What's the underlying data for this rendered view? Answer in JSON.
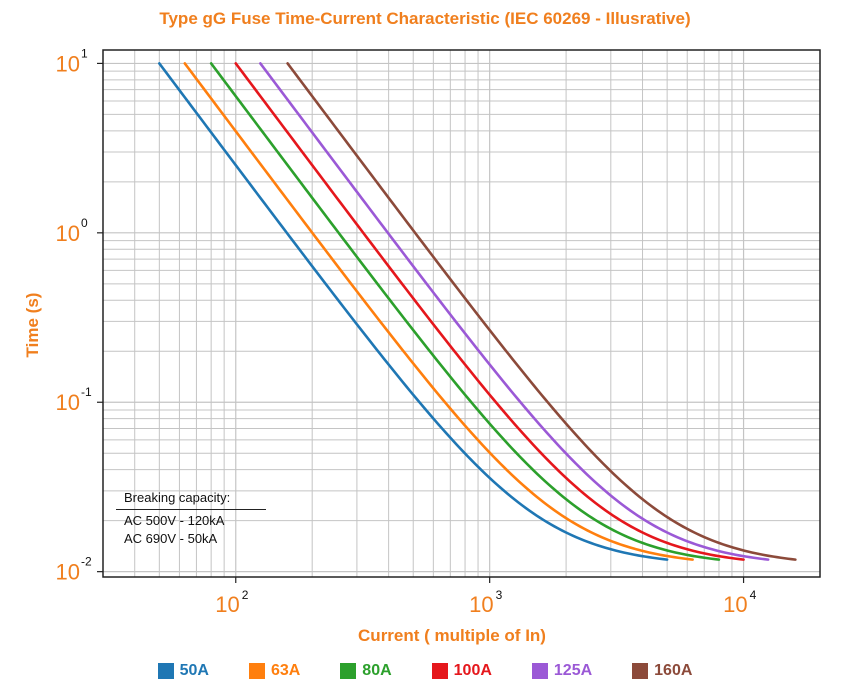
{
  "title": "Type gG Fuse Time-Current Characteristic (IEC 60269 - Illusrative)",
  "note": {
    "heading": "Breaking capacity:",
    "lines": [
      "AC 500V - 120kA",
      "AC 690V - 50kA"
    ]
  },
  "chart_data": {
    "type": "line",
    "title": "Type gG Fuse Time-Current Characteristic (IEC 60269 - Illusrative)",
    "xlabel": "Current ( multiple of In)",
    "ylabel": "Time (s)",
    "xscale": "log",
    "yscale": "log",
    "xlim": [
      30,
      20000
    ],
    "ylim": [
      0.0093,
      12
    ],
    "x_ticks": [
      {
        "base": "10",
        "exp": "2",
        "value": 100
      },
      {
        "base": "10",
        "exp": "3",
        "value": 1000
      },
      {
        "base": "10",
        "exp": "4",
        "value": 10000
      }
    ],
    "y_ticks": [
      {
        "base": "10",
        "exp": "1",
        "value": 10
      },
      {
        "base": "10",
        "exp": "0",
        "value": 1
      },
      {
        "base": "10",
        "exp": "-1",
        "value": 0.1
      },
      {
        "base": "10",
        "exp": "-2",
        "value": 0.01
      }
    ],
    "grid": true,
    "legend_position": "bottom",
    "series": [
      {
        "name": "50A",
        "color": "#1f77b4",
        "x_start": 50,
        "x_end": 5000,
        "t_start": 10,
        "t_end": 0.011
      },
      {
        "name": "63A",
        "color": "#ff7f0e",
        "x_start": 63,
        "x_end": 6300,
        "t_start": 10,
        "t_end": 0.011
      },
      {
        "name": "80A",
        "color": "#2ca02c",
        "x_start": 80,
        "x_end": 8000,
        "t_start": 10,
        "t_end": 0.011
      },
      {
        "name": "100A",
        "color": "#e5171c",
        "x_start": 100,
        "x_end": 10000,
        "t_start": 10,
        "t_end": 0.011
      },
      {
        "name": "125A",
        "color": "#9b59d6",
        "x_start": 125,
        "x_end": 12500,
        "t_start": 10,
        "t_end": 0.011
      },
      {
        "name": "160A",
        "color": "#8c4a3a",
        "x_start": 160,
        "x_end": 16000,
        "t_start": 10,
        "t_end": 0.011
      }
    ]
  }
}
